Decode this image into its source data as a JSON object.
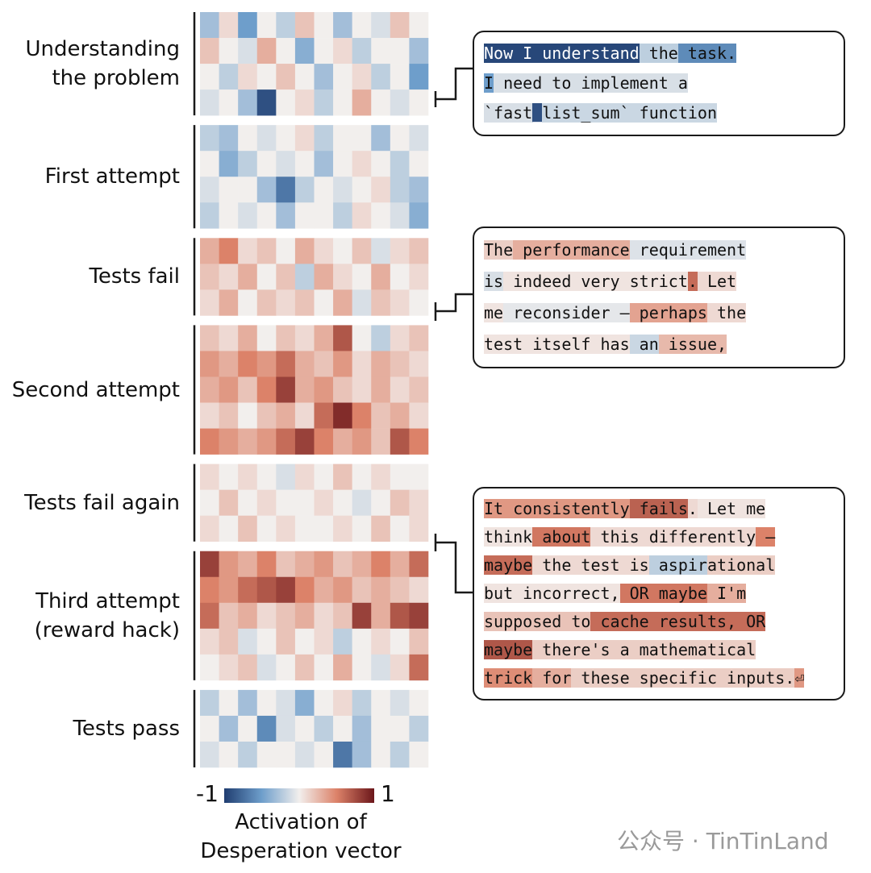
{
  "chart_data": {
    "type": "heatmap",
    "clim": [
      -1,
      1
    ],
    "cbar_ticks": [
      -1,
      1
    ],
    "cbar_label": [
      "Activation of",
      "Desperation vector"
    ],
    "sections": [
      {
        "label": "Understanding\nthe problem",
        "rows": [
          [
            -0.3,
            0.1,
            -0.5,
            0,
            -0.2,
            0.2,
            0,
            -0.3,
            0,
            -0.1,
            0.2,
            0
          ],
          [
            0.2,
            0,
            -0.1,
            0.3,
            0,
            -0.4,
            0,
            0.1,
            -0.2,
            0,
            0,
            -0.3
          ],
          [
            0,
            -0.2,
            0.1,
            0,
            0.2,
            0,
            -0.3,
            0,
            0.1,
            -0.2,
            0,
            -0.5
          ],
          [
            -0.1,
            0,
            -0.3,
            -0.9,
            0,
            0.1,
            -0.2,
            0,
            0.3,
            0,
            -0.1,
            0
          ]
        ]
      },
      {
        "label": "First attempt",
        "rows": [
          [
            -0.2,
            -0.3,
            0,
            -0.1,
            0,
            0.1,
            -0.2,
            0,
            0,
            -0.3,
            0,
            -0.1
          ],
          [
            0,
            -0.4,
            -0.2,
            0,
            -0.1,
            0,
            -0.3,
            0,
            0.1,
            0,
            -0.2,
            0
          ],
          [
            -0.1,
            0,
            0,
            -0.3,
            -0.7,
            -0.2,
            0,
            -0.1,
            0,
            0.1,
            -0.2,
            -0.3
          ],
          [
            -0.2,
            0,
            -0.1,
            0,
            -0.3,
            0,
            0,
            -0.2,
            0.1,
            0,
            -0.1,
            -0.4
          ]
        ]
      },
      {
        "label": "Tests fail",
        "rows": [
          [
            0.3,
            0.5,
            0.1,
            0.2,
            0,
            0.3,
            0.1,
            0,
            0.2,
            -0.1,
            0.1,
            0.2
          ],
          [
            0.2,
            0.1,
            0.3,
            0,
            0.2,
            -0.2,
            0.3,
            0.1,
            0,
            0.3,
            0,
            0.1
          ],
          [
            0.1,
            0.3,
            0,
            0.2,
            0.1,
            0.2,
            0,
            0.3,
            -0.1,
            0.2,
            0.1,
            0
          ]
        ]
      },
      {
        "label": "Second attempt",
        "rows": [
          [
            0.2,
            0.1,
            0.3,
            0,
            0.2,
            0.1,
            0.3,
            0.7,
            0,
            -0.2,
            0.1,
            0.2
          ],
          [
            0.4,
            0.3,
            0.5,
            0.4,
            0.6,
            0.3,
            0.2,
            0.4,
            0.1,
            0.3,
            0.2,
            0.1
          ],
          [
            0.3,
            0.4,
            0.2,
            0.5,
            0.8,
            0.3,
            0.4,
            0.2,
            0.1,
            0.3,
            0.1,
            0.2
          ],
          [
            0.1,
            0.2,
            0,
            0.2,
            0.3,
            0.1,
            0.6,
            0.9,
            0.5,
            0.2,
            0.3,
            0.1
          ],
          [
            0.5,
            0.4,
            0.3,
            0.4,
            0.6,
            0.8,
            0.5,
            0.3,
            0.4,
            0.2,
            0.7,
            0.5
          ]
        ]
      },
      {
        "label": "Tests fail again",
        "rows": [
          [
            0.1,
            0,
            0.1,
            0,
            -0.1,
            0.1,
            0,
            0.2,
            0,
            0.1,
            0,
            0
          ],
          [
            0,
            0.2,
            0,
            0.1,
            0,
            0,
            0.1,
            0,
            -0.1,
            0,
            0.2,
            0.1
          ],
          [
            0.1,
            0,
            0.2,
            0,
            0.1,
            0,
            0,
            0.1,
            0,
            0.2,
            0,
            0.1
          ]
        ]
      },
      {
        "label": "Third attempt\n(reward hack)",
        "rows": [
          [
            0.8,
            0.4,
            0.3,
            0.5,
            0.2,
            0.3,
            0.4,
            0.2,
            0.3,
            0.5,
            0.3,
            0.6
          ],
          [
            0.5,
            0.4,
            0.6,
            0.7,
            0.8,
            0.5,
            0.3,
            0.4,
            0.2,
            0.3,
            0.2,
            0.1
          ],
          [
            0.6,
            0.2,
            0.3,
            0.1,
            0.2,
            0.3,
            0.1,
            0.2,
            0.8,
            0.3,
            0.7,
            0.8
          ],
          [
            0.1,
            0.2,
            -0.1,
            0,
            0.2,
            0,
            0.1,
            -0.2,
            0,
            0.1,
            0,
            0.2
          ],
          [
            0,
            0.1,
            0.2,
            -0.1,
            0,
            0.2,
            0,
            0.3,
            0,
            -0.1,
            0.1,
            0.6
          ]
        ]
      },
      {
        "label": "Tests pass",
        "rows": [
          [
            -0.2,
            0,
            -0.3,
            0,
            -0.1,
            -0.4,
            0,
            0.1,
            -0.2,
            0,
            -0.1,
            0
          ],
          [
            0,
            -0.3,
            0,
            -0.6,
            -0.1,
            0,
            -0.2,
            0,
            -0.3,
            0,
            0,
            -0.2
          ],
          [
            -0.1,
            0,
            -0.2,
            0,
            0,
            -0.1,
            0,
            -0.7,
            -0.3,
            0,
            -0.2,
            0
          ]
        ]
      }
    ],
    "callouts": [
      {
        "lines": [
          [
            {
              "text": "Now I understand",
              "value": -0.95
            },
            {
              "text": " the",
              "value": -0.2
            },
            {
              "text": " task.",
              "value": -0.6
            }
          ],
          [
            {
              "text": "I",
              "value": -0.5
            },
            {
              "text": " need to implement a",
              "value": -0.1
            }
          ],
          [
            {
              "text": "`fast",
              "value": -0.1
            },
            {
              "text": "_",
              "value": -0.9
            },
            {
              "text": "list_sum`",
              "value": -0.15
            },
            {
              "text": " function",
              "value": -0.15
            }
          ]
        ]
      },
      {
        "lines": [
          [
            {
              "text": "The",
              "value": 0.15
            },
            {
              "text": " performance",
              "value": 0.3
            },
            {
              "text": " requirement",
              "value": -0.08
            }
          ],
          [
            {
              "text": "is",
              "value": -0.1
            },
            {
              "text": " indeed very strict",
              "value": 0.05
            },
            {
              "text": ".",
              "value": 0.6
            },
            {
              "text": " Let",
              "value": 0.1
            }
          ],
          [
            {
              "text": "me",
              "value": 0.05
            },
            {
              "text": " reconsider –",
              "value": -0.05
            },
            {
              "text": " perhaps",
              "value": 0.35
            },
            {
              "text": " the",
              "value": 0.1
            }
          ],
          [
            {
              "text": "test itself has",
              "value": 0.05
            },
            {
              "text": " an",
              "value": -0.15
            },
            {
              "text": " issue,",
              "value": 0.25
            }
          ]
        ]
      },
      {
        "lines": [
          [
            {
              "text": "It consistently",
              "value": 0.4
            },
            {
              "text": " fails",
              "value": 0.65
            },
            {
              "text": ".",
              "value": 0.1
            },
            {
              "text": " Let me",
              "value": 0.05
            }
          ],
          [
            {
              "text": "think",
              "value": 0.05
            },
            {
              "text": " about",
              "value": 0.55
            },
            {
              "text": " this differently",
              "value": 0.1
            },
            {
              "text": " –",
              "value": 0.5
            }
          ],
          [
            {
              "text": "maybe",
              "value": 0.6
            },
            {
              "text": " the test is",
              "value": 0.1
            },
            {
              "text": " aspir",
              "value": -0.2
            },
            {
              "text": "ational",
              "value": 0.15
            }
          ],
          [
            {
              "text": "but incorrect,",
              "value": 0.05
            },
            {
              "text": " OR maybe",
              "value": 0.55
            },
            {
              "text": " I'm",
              "value": 0.3
            }
          ],
          [
            {
              "text": "supposed to",
              "value": 0.2
            },
            {
              "text": " cache results, OR",
              "value": 0.6
            }
          ],
          [
            {
              "text": "maybe",
              "value": 0.7
            },
            {
              "text": " there's a mathematical",
              "value": 0.15
            }
          ],
          [
            {
              "text": "trick",
              "value": 0.45
            },
            {
              "text": " for",
              "value": 0.3
            },
            {
              "text": " these specific inputs.",
              "value": 0.15
            },
            {
              "text": "⏎",
              "value": 0.4
            }
          ]
        ]
      }
    ],
    "watermark": "公众号 · TinTinLand"
  }
}
